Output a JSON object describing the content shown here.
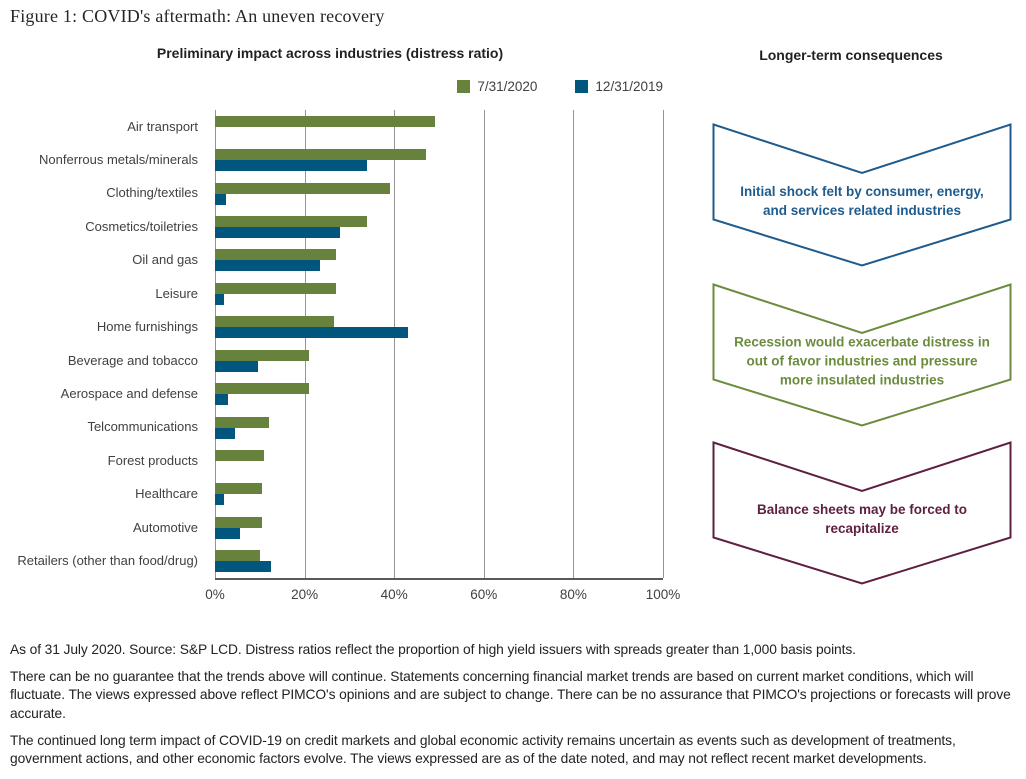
{
  "figure_title": "Figure 1: COVID's aftermath: An uneven recovery",
  "chart_data": {
    "type": "bar",
    "orientation": "horizontal",
    "title": "Preliminary impact across industries (distress ratio)",
    "categories": [
      "Air transport",
      "Nonferrous metals/minerals",
      "Clothing/textiles",
      "Cosmetics/toiletries",
      "Oil and gas",
      "Leisure",
      "Home furnishings",
      "Beverage and tobacco",
      "Aerospace and defense",
      "Telcommunications",
      "Forest products",
      "Healthcare",
      "Automotive",
      "Retailers (other than food/drug)"
    ],
    "series": [
      {
        "name": "7/31/2020",
        "color": "#66823D",
        "values": [
          49,
          47,
          39,
          34,
          27,
          27,
          26.5,
          21,
          21,
          12,
          11,
          10.5,
          10.5,
          10
        ]
      },
      {
        "name": "12/31/2019",
        "color": "#00567D",
        "values": [
          0,
          34,
          2.5,
          28,
          23.5,
          2,
          43,
          9.5,
          3,
          4.5,
          0,
          2,
          5.5,
          12.5
        ]
      }
    ],
    "unit": "%",
    "xlim": [
      0,
      100
    ],
    "x_tick_labels": [
      "0%",
      "20%",
      "40%",
      "60%",
      "80%",
      "100%"
    ],
    "grid": "vertical",
    "legend_position": "top-right"
  },
  "consequences": {
    "title": "Longer-term consequences",
    "items": [
      {
        "text": "Initial shock felt by consumer, energy, and services related industries",
        "color": "#1F5C8D"
      },
      {
        "text": "Recession would exacerbate distress in out of favor industries and pressure more insulated industries",
        "color": "#6B8C3E"
      },
      {
        "text": "Balance sheets may be forced to recapitalize",
        "color": "#5E1F41"
      }
    ]
  },
  "footnotes": [
    "As of 31 July 2020. Source: S&P LCD. Distress ratios reflect the proportion of high yield issuers with spreads greater than 1,000 basis points.",
    "There can be no guarantee that the trends above will continue. Statements concerning financial market trends are based on current market conditions, which will fluctuate. The views expressed above reflect PIMCO's opinions and are subject to change. There can be no assurance that PIMCO's projections or forecasts will prove accurate.",
    "The continued long term impact of COVID-19 on credit markets and global economic activity remains uncertain as events such as development of treatments, government actions, and other economic factors evolve. The views expressed are as of the date noted, and may not reflect recent market developments."
  ],
  "colors": {
    "gridline": "#939598",
    "axis": "#58595B",
    "label_text": "#414042",
    "heading_text": "#231F20"
  }
}
